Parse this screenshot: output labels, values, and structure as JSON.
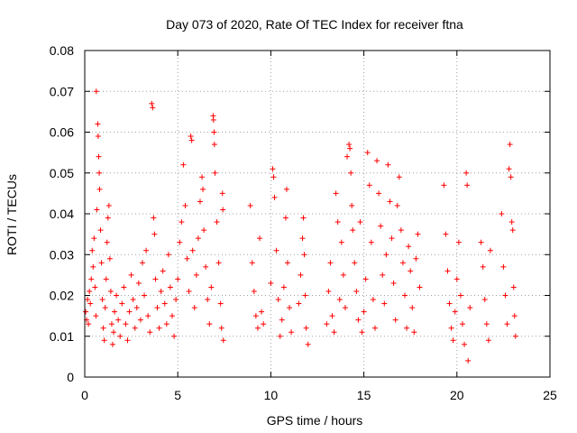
{
  "chart_data": {
    "type": "scatter",
    "title": "Day 073 of 2020, Rate Of TEC Index for receiver ftna",
    "xlabel": "GPS time / hours",
    "ylabel": "ROTI / TECUs",
    "xlim": [
      0,
      25
    ],
    "ylim": [
      0,
      0.08
    ],
    "x_ticks": [
      0,
      5,
      10,
      15,
      20,
      25
    ],
    "x_tick_labels": [
      "0",
      "5",
      "10",
      "15",
      "20",
      "25"
    ],
    "y_ticks": [
      0,
      0.01,
      0.02,
      0.03,
      0.04,
      0.05,
      0.06,
      0.07,
      0.08
    ],
    "y_tick_labels": [
      "0",
      "0.01",
      "0.02",
      "0.03",
      "0.04",
      "0.05",
      "0.06",
      "0.07",
      "0.08"
    ],
    "grid": true,
    "legend": "none",
    "marker": "+",
    "color": "#ff0000",
    "series": [
      {
        "values_xy": [
          [
            0.05,
            0.016
          ],
          [
            0.1,
            0.014
          ],
          [
            0.15,
            0.019
          ],
          [
            0.2,
            0.013
          ],
          [
            0.25,
            0.021
          ],
          [
            0.3,
            0.018
          ],
          [
            0.35,
            0.024
          ],
          [
            0.4,
            0.031
          ],
          [
            0.45,
            0.027
          ],
          [
            0.5,
            0.034
          ],
          [
            0.55,
            0.022
          ],
          [
            0.6,
            0.015
          ],
          [
            0.62,
            0.07
          ],
          [
            0.65,
            0.041
          ],
          [
            0.7,
            0.062
          ],
          [
            0.72,
            0.059
          ],
          [
            0.75,
            0.054
          ],
          [
            0.78,
            0.05
          ],
          [
            0.8,
            0.046
          ],
          [
            0.85,
            0.036
          ],
          [
            0.9,
            0.028
          ],
          [
            0.95,
            0.019
          ],
          [
            1.0,
            0.012
          ],
          [
            1.05,
            0.009
          ],
          [
            1.1,
            0.017
          ],
          [
            1.15,
            0.024
          ],
          [
            1.2,
            0.033
          ],
          [
            1.25,
            0.039
          ],
          [
            1.3,
            0.042
          ],
          [
            1.35,
            0.029
          ],
          [
            1.4,
            0.021
          ],
          [
            1.45,
            0.013
          ],
          [
            1.5,
            0.008
          ],
          [
            1.55,
            0.011
          ],
          [
            1.6,
            0.016
          ],
          [
            1.7,
            0.02
          ],
          [
            1.8,
            0.014
          ],
          [
            1.9,
            0.01
          ],
          [
            2.0,
            0.018
          ],
          [
            2.1,
            0.022
          ],
          [
            2.2,
            0.013
          ],
          [
            2.3,
            0.009
          ],
          [
            2.4,
            0.016
          ],
          [
            2.5,
            0.025
          ],
          [
            2.6,
            0.019
          ],
          [
            2.7,
            0.012
          ],
          [
            2.8,
            0.017
          ],
          [
            2.9,
            0.023
          ],
          [
            3.0,
            0.014
          ],
          [
            3.1,
            0.028
          ],
          [
            3.2,
            0.02
          ],
          [
            3.3,
            0.031
          ],
          [
            3.4,
            0.015
          ],
          [
            3.5,
            0.011
          ],
          [
            3.6,
            0.067
          ],
          [
            3.65,
            0.066
          ],
          [
            3.7,
            0.039
          ],
          [
            3.75,
            0.035
          ],
          [
            3.8,
            0.024
          ],
          [
            3.9,
            0.017
          ],
          [
            4.0,
            0.012
          ],
          [
            4.1,
            0.021
          ],
          [
            4.2,
            0.026
          ],
          [
            4.3,
            0.018
          ],
          [
            4.4,
            0.013
          ],
          [
            4.5,
            0.03
          ],
          [
            4.6,
            0.022
          ],
          [
            4.7,
            0.015
          ],
          [
            4.8,
            0.01
          ],
          [
            4.9,
            0.019
          ],
          [
            5.0,
            0.024
          ],
          [
            5.1,
            0.033
          ],
          [
            5.2,
            0.038
          ],
          [
            5.3,
            0.052
          ],
          [
            5.4,
            0.042
          ],
          [
            5.5,
            0.029
          ],
          [
            5.6,
            0.021
          ],
          [
            5.7,
            0.059
          ],
          [
            5.75,
            0.058
          ],
          [
            5.8,
            0.031
          ],
          [
            5.9,
            0.017
          ],
          [
            6.0,
            0.025
          ],
          [
            6.1,
            0.034
          ],
          [
            6.2,
            0.043
          ],
          [
            6.3,
            0.049
          ],
          [
            6.35,
            0.046
          ],
          [
            6.4,
            0.036
          ],
          [
            6.5,
            0.027
          ],
          [
            6.6,
            0.019
          ],
          [
            6.7,
            0.013
          ],
          [
            6.8,
            0.022
          ],
          [
            6.9,
            0.064
          ],
          [
            6.92,
            0.063
          ],
          [
            6.95,
            0.06
          ],
          [
            6.97,
            0.057
          ],
          [
            7.0,
            0.05
          ],
          [
            7.1,
            0.038
          ],
          [
            7.2,
            0.028
          ],
          [
            7.3,
            0.018
          ],
          [
            7.35,
            0.012
          ],
          [
            7.4,
            0.045
          ],
          [
            7.42,
            0.041
          ],
          [
            7.45,
            0.009
          ],
          [
            8.9,
            0.042
          ],
          [
            9.0,
            0.028
          ],
          [
            9.1,
            0.021
          ],
          [
            9.2,
            0.015
          ],
          [
            9.3,
            0.012
          ],
          [
            9.4,
            0.034
          ],
          [
            9.5,
            0.016
          ],
          [
            9.6,
            0.013
          ],
          [
            10.0,
            0.023
          ],
          [
            10.1,
            0.051
          ],
          [
            10.15,
            0.049
          ],
          [
            10.2,
            0.044
          ],
          [
            10.3,
            0.031
          ],
          [
            10.4,
            0.019
          ],
          [
            10.5,
            0.01
          ],
          [
            10.6,
            0.014
          ],
          [
            10.7,
            0.022
          ],
          [
            10.8,
            0.039
          ],
          [
            10.85,
            0.046
          ],
          [
            10.9,
            0.028
          ],
          [
            11.0,
            0.017
          ],
          [
            11.1,
            0.011
          ],
          [
            11.5,
            0.018
          ],
          [
            11.6,
            0.025
          ],
          [
            11.7,
            0.034
          ],
          [
            11.75,
            0.039
          ],
          [
            11.8,
            0.03
          ],
          [
            11.85,
            0.02
          ],
          [
            11.9,
            0.012
          ],
          [
            12.0,
            0.008
          ],
          [
            13.0,
            0.013
          ],
          [
            13.1,
            0.021
          ],
          [
            13.2,
            0.028
          ],
          [
            13.3,
            0.015
          ],
          [
            13.4,
            0.011
          ],
          [
            13.5,
            0.045
          ],
          [
            13.6,
            0.038
          ],
          [
            13.7,
            0.019
          ],
          [
            13.8,
            0.033
          ],
          [
            13.9,
            0.025
          ],
          [
            14.0,
            0.017
          ],
          [
            14.1,
            0.054
          ],
          [
            14.2,
            0.057
          ],
          [
            14.25,
            0.056
          ],
          [
            14.3,
            0.05
          ],
          [
            14.35,
            0.042
          ],
          [
            14.4,
            0.036
          ],
          [
            14.5,
            0.028
          ],
          [
            14.6,
            0.021
          ],
          [
            14.7,
            0.014
          ],
          [
            14.8,
            0.038
          ],
          [
            14.9,
            0.011
          ],
          [
            15.0,
            0.016
          ],
          [
            15.1,
            0.024
          ],
          [
            15.2,
            0.055
          ],
          [
            15.3,
            0.047
          ],
          [
            15.4,
            0.033
          ],
          [
            15.5,
            0.019
          ],
          [
            15.6,
            0.012
          ],
          [
            15.7,
            0.053
          ],
          [
            15.8,
            0.045
          ],
          [
            15.9,
            0.037
          ],
          [
            16.0,
            0.025
          ],
          [
            16.1,
            0.018
          ],
          [
            16.2,
            0.03
          ],
          [
            16.3,
            0.052
          ],
          [
            16.4,
            0.043
          ],
          [
            16.5,
            0.034
          ],
          [
            16.6,
            0.023
          ],
          [
            16.7,
            0.014
          ],
          [
            16.8,
            0.042
          ],
          [
            16.9,
            0.049
          ],
          [
            17.0,
            0.036
          ],
          [
            17.1,
            0.028
          ],
          [
            17.2,
            0.02
          ],
          [
            17.3,
            0.012
          ],
          [
            17.4,
            0.032
          ],
          [
            17.5,
            0.026
          ],
          [
            17.6,
            0.017
          ],
          [
            17.7,
            0.011
          ],
          [
            17.8,
            0.029
          ],
          [
            17.9,
            0.035
          ],
          [
            18.0,
            0.022
          ],
          [
            19.3,
            0.047
          ],
          [
            19.4,
            0.035
          ],
          [
            19.5,
            0.026
          ],
          [
            19.6,
            0.018
          ],
          [
            19.7,
            0.012
          ],
          [
            19.8,
            0.009
          ],
          [
            19.9,
            0.016
          ],
          [
            20.0,
            0.024
          ],
          [
            20.1,
            0.033
          ],
          [
            20.2,
            0.02
          ],
          [
            20.3,
            0.013
          ],
          [
            20.4,
            0.008
          ],
          [
            20.5,
            0.05
          ],
          [
            20.55,
            0.047
          ],
          [
            20.6,
            0.004
          ],
          [
            20.7,
            0.017
          ],
          [
            21.3,
            0.033
          ],
          [
            21.4,
            0.027
          ],
          [
            21.5,
            0.019
          ],
          [
            21.6,
            0.013
          ],
          [
            21.7,
            0.009
          ],
          [
            21.8,
            0.031
          ],
          [
            22.4,
            0.04
          ],
          [
            22.5,
            0.027
          ],
          [
            22.6,
            0.02
          ],
          [
            22.7,
            0.013
          ],
          [
            22.8,
            0.051
          ],
          [
            22.85,
            0.057
          ],
          [
            22.9,
            0.049
          ],
          [
            22.95,
            0.038
          ],
          [
            23.0,
            0.036
          ],
          [
            23.05,
            0.022
          ],
          [
            23.1,
            0.015
          ],
          [
            23.15,
            0.01
          ]
        ]
      }
    ]
  }
}
